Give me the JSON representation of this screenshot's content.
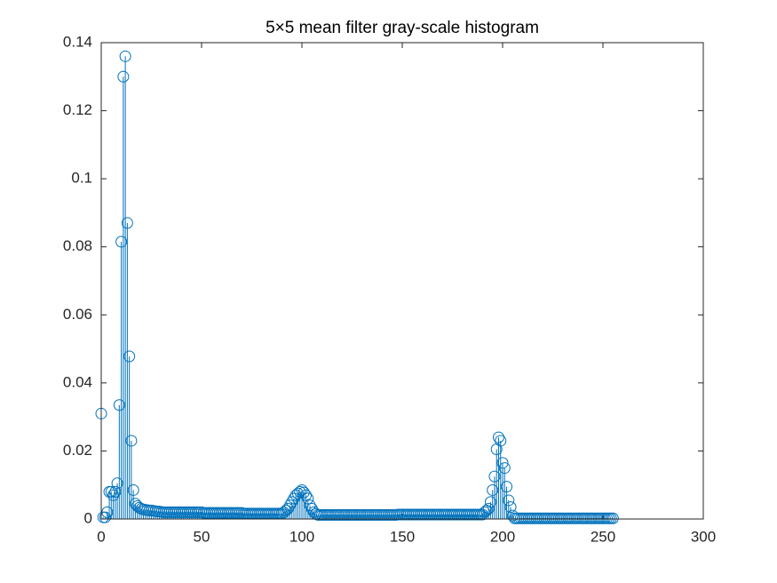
{
  "chart_data": {
    "type": "stem",
    "title": "5×5 mean filter gray-scale histogram",
    "color": "#0072bd",
    "x": [
      0,
      1,
      2,
      3,
      4,
      5,
      6,
      7,
      8,
      9,
      10,
      11,
      12,
      13,
      14,
      15,
      16,
      17,
      18,
      19,
      20,
      21,
      22,
      23,
      24,
      25,
      26,
      27,
      28,
      29,
      30,
      31,
      32,
      33,
      34,
      35,
      36,
      37,
      38,
      39,
      40,
      41,
      42,
      43,
      44,
      45,
      46,
      47,
      48,
      49,
      50,
      51,
      52,
      53,
      54,
      55,
      56,
      57,
      58,
      59,
      60,
      61,
      62,
      63,
      64,
      65,
      66,
      67,
      68,
      69,
      70,
      71,
      72,
      73,
      74,
      75,
      76,
      77,
      78,
      79,
      80,
      81,
      82,
      83,
      84,
      85,
      86,
      87,
      88,
      89,
      90,
      91,
      92,
      93,
      94,
      95,
      96,
      97,
      98,
      99,
      100,
      101,
      102,
      103,
      104,
      105,
      106,
      107,
      108,
      109,
      110,
      111,
      112,
      113,
      114,
      115,
      116,
      117,
      118,
      119,
      120,
      121,
      122,
      123,
      124,
      125,
      126,
      127,
      128,
      129,
      130,
      131,
      132,
      133,
      134,
      135,
      136,
      137,
      138,
      139,
      140,
      141,
      142,
      143,
      144,
      145,
      146,
      147,
      148,
      149,
      150,
      151,
      152,
      153,
      154,
      155,
      156,
      157,
      158,
      159,
      160,
      161,
      162,
      163,
      164,
      165,
      166,
      167,
      168,
      169,
      170,
      171,
      172,
      173,
      174,
      175,
      176,
      177,
      178,
      179,
      180,
      181,
      182,
      183,
      184,
      185,
      186,
      187,
      188,
      189,
      190,
      191,
      192,
      193,
      194,
      195,
      196,
      197,
      198,
      199,
      200,
      201,
      202,
      203,
      204,
      205,
      206,
      207,
      208,
      209,
      210,
      211,
      212,
      213,
      214,
      215,
      216,
      217,
      218,
      219,
      220,
      221,
      222,
      223,
      224,
      225,
      226,
      227,
      228,
      229,
      230,
      231,
      232,
      233,
      234,
      235,
      236,
      237,
      238,
      239,
      240,
      241,
      242,
      243,
      244,
      245,
      246,
      247,
      248,
      249,
      250,
      251,
      252,
      253,
      254,
      255
    ],
    "values": [
      0.031,
      0.0005,
      0.0005,
      0.002,
      0.008,
      0.008,
      0.007,
      0.008,
      0.0105,
      0.0335,
      0.0815,
      0.13,
      0.136,
      0.087,
      0.0478,
      0.023,
      0.0085,
      0.0045,
      0.0038,
      0.0033,
      0.003,
      0.0028,
      0.0027,
      0.0026,
      0.0025,
      0.0025,
      0.0024,
      0.0023,
      0.0022,
      0.0022,
      0.0021,
      0.002,
      0.002,
      0.002,
      0.002,
      0.002,
      0.002,
      0.002,
      0.002,
      0.002,
      0.002,
      0.002,
      0.002,
      0.002,
      0.002,
      0.002,
      0.002,
      0.002,
      0.002,
      0.002,
      0.002,
      0.0018,
      0.0018,
      0.0018,
      0.0018,
      0.0018,
      0.0018,
      0.0018,
      0.0018,
      0.0018,
      0.0018,
      0.0018,
      0.0018,
      0.0018,
      0.0018,
      0.0018,
      0.0018,
      0.0018,
      0.0018,
      0.0018,
      0.0018,
      0.0016,
      0.0016,
      0.0016,
      0.0016,
      0.0016,
      0.0016,
      0.0016,
      0.0016,
      0.0016,
      0.0016,
      0.0016,
      0.0016,
      0.0016,
      0.0016,
      0.0016,
      0.0016,
      0.0016,
      0.0016,
      0.0016,
      0.0016,
      0.002,
      0.0025,
      0.003,
      0.004,
      0.005,
      0.006,
      0.007,
      0.0075,
      0.008,
      0.0085,
      0.0078,
      0.007,
      0.006,
      0.004,
      0.003,
      0.002,
      0.0015,
      0.0012,
      0.0012,
      0.0012,
      0.0012,
      0.0012,
      0.0012,
      0.0012,
      0.0012,
      0.0012,
      0.0012,
      0.0012,
      0.0012,
      0.0012,
      0.0012,
      0.0012,
      0.0012,
      0.0012,
      0.0012,
      0.0012,
      0.0012,
      0.0012,
      0.0012,
      0.0012,
      0.0012,
      0.0012,
      0.0012,
      0.0012,
      0.0012,
      0.0012,
      0.0012,
      0.0012,
      0.0012,
      0.0012,
      0.0012,
      0.0012,
      0.0012,
      0.0012,
      0.0012,
      0.0012,
      0.0012,
      0.0013,
      0.0013,
      0.0013,
      0.0013,
      0.0013,
      0.0013,
      0.0013,
      0.0013,
      0.0013,
      0.0013,
      0.0013,
      0.0013,
      0.0013,
      0.0013,
      0.0013,
      0.0013,
      0.0013,
      0.0013,
      0.0013,
      0.0013,
      0.0013,
      0.0013,
      0.0013,
      0.0013,
      0.0013,
      0.0013,
      0.0013,
      0.0013,
      0.0013,
      0.0013,
      0.0013,
      0.0013,
      0.0013,
      0.0013,
      0.0013,
      0.0013,
      0.0013,
      0.0013,
      0.0013,
      0.0013,
      0.0013,
      0.0013,
      0.0013,
      0.002,
      0.0025,
      0.003,
      0.005,
      0.0085,
      0.0125,
      0.0205,
      0.024,
      0.023,
      0.0165,
      0.015,
      0.0095,
      0.0055,
      0.0035,
      0.001,
      0.0002,
      0.0002,
      0.0002,
      0.0002,
      0.0002,
      0.0002,
      0.0002,
      0.0002,
      0.0002,
      0.0002,
      0.0002,
      0.0002,
      0.0002,
      0.0002,
      0.0002,
      0.0002,
      0.0002,
      0.0002,
      0.0002,
      0.0002,
      0.0002,
      0.0002,
      0.0002,
      0.0002,
      0.0002,
      0.0002,
      0.0002,
      0.0002,
      0.0002,
      0.0002,
      0.0002,
      0.0002,
      0.0002,
      0.0002,
      0.0002,
      0.0002,
      0.0002,
      0.0002,
      0.0002,
      0.0002,
      0.0002,
      0.0002,
      0.0002,
      0.0002,
      0.0002,
      0.0002,
      0.0002,
      0.0002,
      0.0002,
      0.0002
    ],
    "xlim": [
      0,
      300
    ],
    "xticks": [
      0,
      50,
      100,
      150,
      200,
      250,
      300
    ],
    "ylim": [
      0,
      0.14
    ],
    "yticks": [
      0,
      0.02,
      0.04,
      0.06,
      0.08,
      0.1,
      0.12,
      0.14
    ]
  }
}
